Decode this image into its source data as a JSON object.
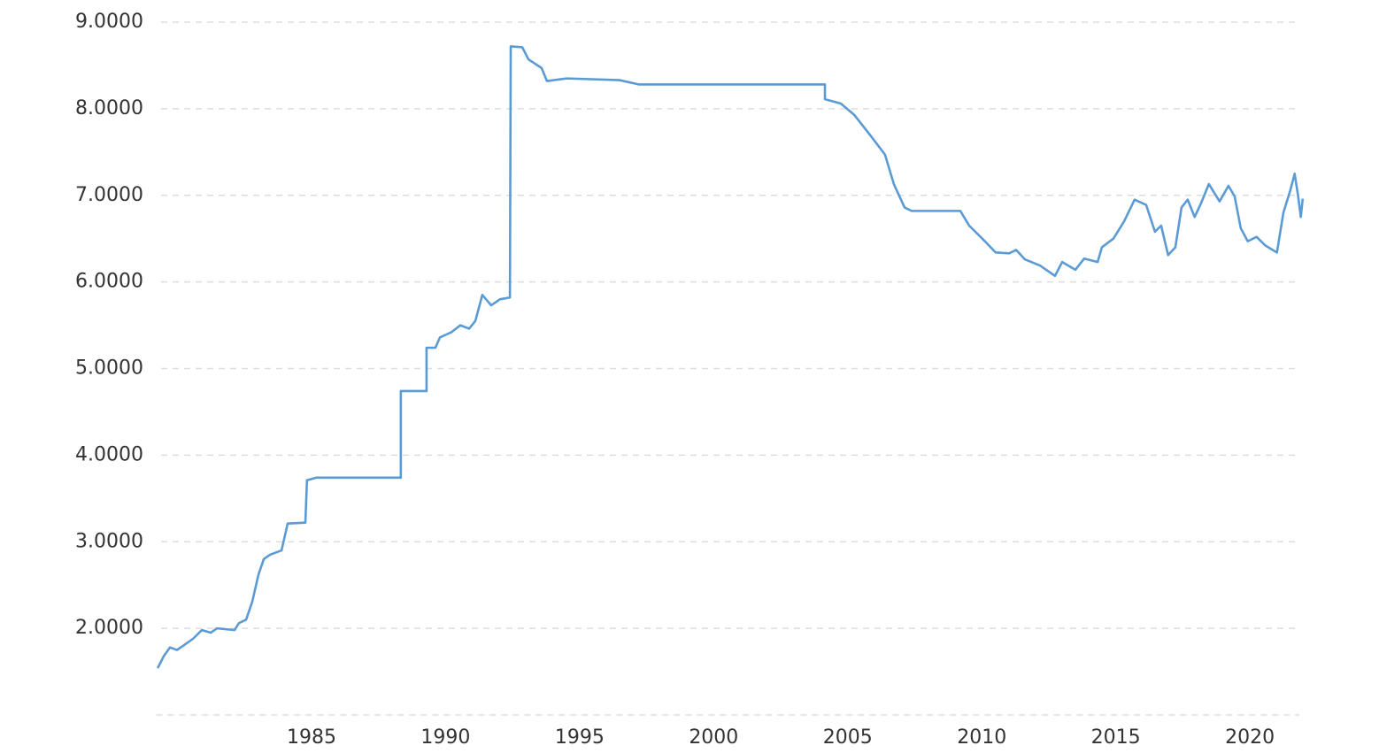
{
  "chart_data": {
    "type": "line",
    "x": [
      1979.26,
      1979.49,
      1979.72,
      1979.98,
      1980.31,
      1980.58,
      1980.91,
      1981.24,
      1981.47,
      1982.13,
      1982.29,
      1982.56,
      1982.79,
      1983.02,
      1983.22,
      1983.45,
      1983.88,
      1984.11,
      1984.77,
      1984.83,
      1985.17,
      1988.33,
      1988.33,
      1989.29,
      1989.29,
      1989.62,
      1989.79,
      1990.22,
      1990.55,
      1990.88,
      1991.11,
      1991.37,
      1991.7,
      1992.03,
      1992.4,
      1992.43,
      1992.86,
      1993.09,
      1993.58,
      1993.78,
      1994.51,
      1996.49,
      1997.22,
      2004.15,
      2004.15,
      2004.74,
      2005.24,
      2005.9,
      2006.39,
      2006.72,
      2007.12,
      2007.38,
      2009.2,
      2009.53,
      2010.02,
      2010.52,
      2011.02,
      2011.28,
      2011.61,
      2012.17,
      2012.73,
      2013.0,
      2013.49,
      2013.82,
      2014.32,
      2014.48,
      2014.91,
      2015.31,
      2015.7,
      2016.13,
      2016.46,
      2016.69,
      2016.95,
      2017.22,
      2017.45,
      2017.68,
      2017.94,
      2018.18,
      2018.47,
      2018.87,
      2019.2,
      2019.43,
      2019.66,
      2019.92,
      2020.25,
      2020.58,
      2021.01,
      2021.25,
      2021.51,
      2021.67,
      2021.8,
      2021.9,
      2021.97
    ],
    "series": [
      {
        "color": "#5b9bd5",
        "values": [
          1.54,
          1.68,
          1.78,
          1.75,
          1.82,
          1.88,
          1.98,
          1.95,
          2.0,
          1.98,
          2.06,
          2.1,
          2.31,
          2.62,
          2.8,
          2.85,
          2.9,
          3.21,
          3.22,
          3.71,
          3.74,
          3.74,
          4.74,
          4.74,
          5.24,
          5.24,
          5.36,
          5.42,
          5.5,
          5.46,
          5.55,
          5.85,
          5.73,
          5.8,
          5.82,
          8.72,
          8.71,
          8.57,
          8.47,
          8.32,
          8.35,
          8.33,
          8.28,
          8.28,
          8.11,
          8.06,
          7.93,
          7.67,
          7.47,
          7.13,
          6.86,
          6.82,
          6.82,
          6.65,
          6.5,
          6.34,
          6.33,
          6.37,
          6.26,
          6.19,
          6.07,
          6.23,
          6.14,
          6.27,
          6.23,
          6.4,
          6.5,
          6.7,
          6.95,
          6.89,
          6.58,
          6.65,
          6.31,
          6.4,
          6.86,
          6.95,
          6.75,
          6.91,
          7.13,
          6.93,
          7.11,
          6.99,
          6.62,
          6.47,
          6.52,
          6.42,
          6.34,
          6.8,
          7.06,
          7.25,
          6.99,
          6.75,
          6.96
        ]
      }
    ],
    "xlim": [
      1979.2,
      2022.0
    ],
    "xticks": [
      1985,
      1990,
      1995,
      2000,
      2005,
      2010,
      2015,
      2020
    ],
    "ylim": [
      1,
      9
    ],
    "yticks": [
      {
        "value": 2,
        "label": "2.0000"
      },
      {
        "value": 3,
        "label": "3.0000"
      },
      {
        "value": 4,
        "label": "4.0000"
      },
      {
        "value": 5,
        "label": "5.0000"
      },
      {
        "value": 6,
        "label": "6.0000"
      },
      {
        "value": 7,
        "label": "7.0000"
      },
      {
        "value": 8,
        "label": "8.0000"
      },
      {
        "value": 9,
        "label": "9.0000"
      }
    ],
    "grid": true
  }
}
